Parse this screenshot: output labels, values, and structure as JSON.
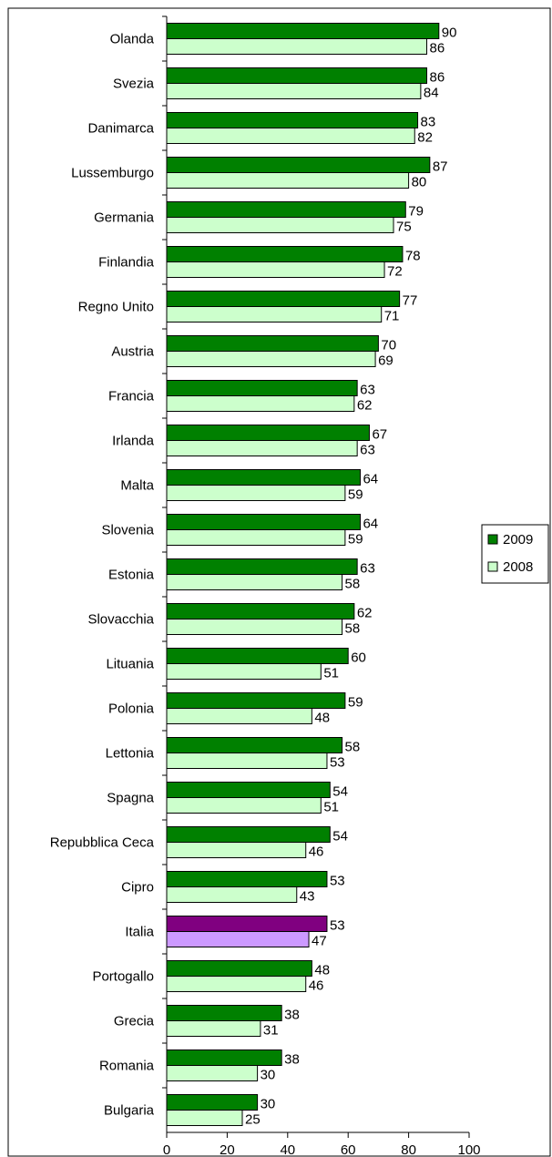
{
  "chart_data": {
    "type": "bar",
    "orientation": "horizontal",
    "categories": [
      "Olanda",
      "Svezia",
      "Danimarca",
      "Lussemburgo",
      "Germania",
      "Finlandia",
      "Regno Unito",
      "Austria",
      "Francia",
      "Irlanda",
      "Malta",
      "Slovenia",
      "Estonia",
      "Slovacchia",
      "Lituania",
      "Polonia",
      "Lettonia",
      "Spagna",
      "Repubblica Ceca",
      "Cipro",
      "Italia",
      "Portogallo",
      "Grecia",
      "Romania",
      "Bulgaria"
    ],
    "series": [
      {
        "name": "2009",
        "values": [
          90,
          86,
          83,
          87,
          79,
          78,
          77,
          70,
          63,
          67,
          64,
          64,
          63,
          62,
          60,
          59,
          58,
          54,
          54,
          53,
          53,
          48,
          38,
          38,
          30
        ]
      },
      {
        "name": "2008",
        "values": [
          86,
          84,
          82,
          80,
          75,
          72,
          71,
          69,
          62,
          63,
          59,
          59,
          58,
          58,
          51,
          48,
          53,
          51,
          46,
          43,
          47,
          46,
          31,
          30,
          25
        ]
      }
    ],
    "highlight_category": "Italia",
    "xlim": [
      0,
      100
    ],
    "xticks": [
      0,
      20,
      40,
      60,
      80,
      100
    ],
    "title": "",
    "xlabel": "",
    "ylabel": "",
    "grid": false,
    "legend_position": "right",
    "colors": {
      "2009": "#008000",
      "2008": "#ccffcc",
      "highlight_2009": "#800080",
      "highlight_2008": "#cc99ff",
      "bar_stroke": "#000000"
    }
  }
}
